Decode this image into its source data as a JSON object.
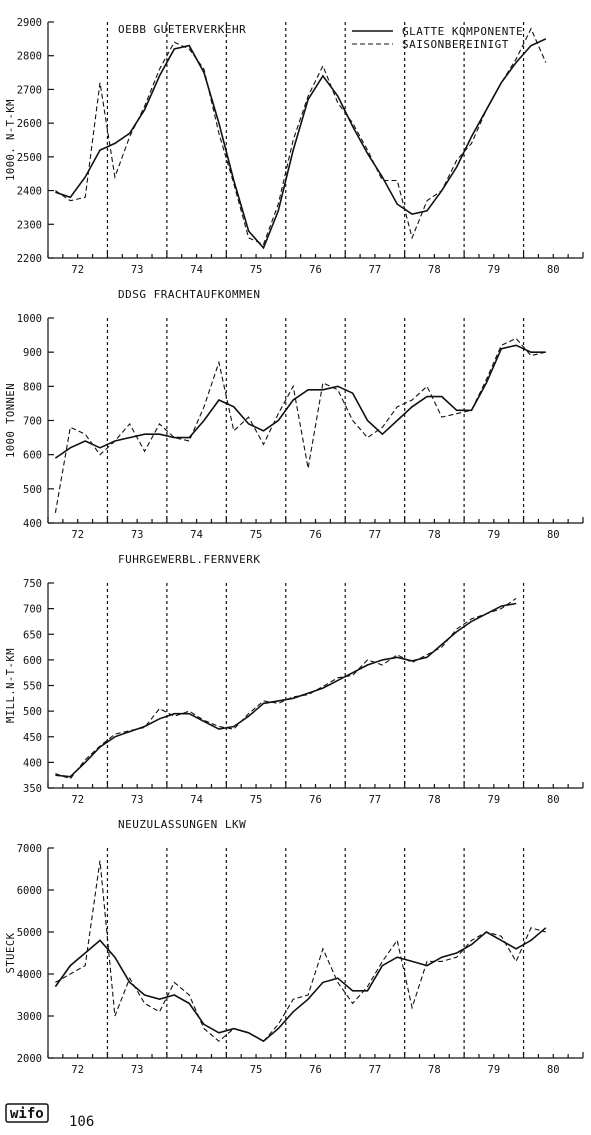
{
  "legend": {
    "smooth_label": "GLATTE KOMPONENTE",
    "seasonal_label": "SAISONBEREINIGT"
  },
  "logo_text": "wifo",
  "page_number": "106",
  "chart_data": [
    {
      "type": "line",
      "title": "OEBB GUETERVERKEHR",
      "ylabel": "1000. N-T-KM",
      "ylim": [
        2200,
        2900
      ],
      "yticks": [
        2200,
        2300,
        2400,
        2500,
        2600,
        2700,
        2800,
        2900
      ],
      "xlim": [
        71.5,
        80.5
      ],
      "xticks": [
        "72",
        "73",
        "74",
        "75",
        "76",
        "77",
        "78",
        "79",
        "80"
      ],
      "grid_years": [
        72.5,
        73.5,
        74.5,
        75.5,
        76.5,
        77.5,
        78.5,
        79.5
      ],
      "series": [
        {
          "name": "GLATTE KOMPONENTE",
          "x": [
            71.625,
            71.875,
            72.125,
            72.375,
            72.625,
            72.875,
            73.125,
            73.375,
            73.625,
            73.875,
            74.125,
            74.375,
            74.625,
            74.875,
            75.125,
            75.375,
            75.625,
            75.875,
            76.125,
            76.375,
            76.625,
            76.875,
            77.125,
            77.375,
            77.625,
            77.875,
            78.125,
            78.375,
            78.625,
            78.875,
            79.125,
            79.375,
            79.625,
            79.875
          ],
          "y": [
            2395,
            2380,
            2440,
            2520,
            2540,
            2570,
            2640,
            2740,
            2820,
            2830,
            2750,
            2600,
            2430,
            2280,
            2230,
            2340,
            2520,
            2670,
            2740,
            2680,
            2590,
            2510,
            2440,
            2360,
            2330,
            2340,
            2400,
            2470,
            2560,
            2640,
            2720,
            2780,
            2830,
            2850
          ]
        },
        {
          "name": "SAISONBEREINIGT",
          "x": [
            71.625,
            71.875,
            72.125,
            72.375,
            72.625,
            72.875,
            73.125,
            73.375,
            73.625,
            73.875,
            74.125,
            74.375,
            74.625,
            74.875,
            75.125,
            75.375,
            75.625,
            75.875,
            76.125,
            76.375,
            76.625,
            76.875,
            77.125,
            77.375,
            77.625,
            77.875,
            78.125,
            78.375,
            78.625,
            78.875,
            79.125,
            79.375,
            79.625,
            79.875
          ],
          "y": [
            2400,
            2370,
            2380,
            2720,
            2440,
            2560,
            2650,
            2760,
            2840,
            2820,
            2760,
            2570,
            2420,
            2260,
            2240,
            2360,
            2550,
            2680,
            2770,
            2660,
            2600,
            2520,
            2430,
            2430,
            2260,
            2370,
            2400,
            2490,
            2540,
            2640,
            2720,
            2790,
            2880,
            2780
          ]
        }
      ]
    },
    {
      "type": "line",
      "title": "DDSG FRACHTAUFKOMMEN",
      "ylabel": "1000 TONNEN",
      "ylim": [
        400,
        1000
      ],
      "yticks": [
        400,
        500,
        600,
        700,
        800,
        900,
        1000
      ],
      "xlim": [
        71.5,
        80.5
      ],
      "xticks": [
        "72",
        "73",
        "74",
        "75",
        "76",
        "77",
        "78",
        "79",
        "80"
      ],
      "grid_years": [
        72.5,
        73.5,
        74.5,
        75.5,
        76.5,
        77.5,
        78.5,
        79.5
      ],
      "series": [
        {
          "name": "GLATTE KOMPONENTE",
          "x": [
            71.625,
            71.875,
            72.125,
            72.375,
            72.625,
            72.875,
            73.125,
            73.375,
            73.625,
            73.875,
            74.125,
            74.375,
            74.625,
            74.875,
            75.125,
            75.375,
            75.625,
            75.875,
            76.125,
            76.375,
            76.625,
            76.875,
            77.125,
            77.375,
            77.625,
            77.875,
            78.125,
            78.375,
            78.625,
            78.875,
            79.125,
            79.375,
            79.625,
            79.875
          ],
          "y": [
            590,
            620,
            640,
            620,
            640,
            650,
            660,
            660,
            650,
            650,
            700,
            760,
            740,
            690,
            670,
            700,
            760,
            790,
            790,
            800,
            780,
            700,
            660,
            700,
            740,
            770,
            770,
            730,
            730,
            810,
            910,
            920,
            900,
            900
          ]
        },
        {
          "name": "SAISONBEREINIGT",
          "x": [
            71.625,
            71.875,
            72.125,
            72.375,
            72.625,
            72.875,
            73.125,
            73.375,
            73.625,
            73.875,
            74.125,
            74.375,
            74.625,
            74.875,
            75.125,
            75.375,
            75.625,
            75.875,
            76.125,
            76.375,
            76.625,
            76.875,
            77.125,
            77.375,
            77.625,
            77.875,
            78.125,
            78.375,
            78.625,
            78.875,
            79.125,
            79.375,
            79.625,
            79.875
          ],
          "y": [
            430,
            680,
            660,
            600,
            640,
            690,
            610,
            690,
            650,
            640,
            740,
            870,
            670,
            710,
            630,
            720,
            800,
            560,
            810,
            790,
            700,
            650,
            680,
            740,
            760,
            800,
            710,
            720,
            730,
            820,
            920,
            940,
            890,
            900
          ]
        }
      ]
    },
    {
      "type": "line",
      "title": "FUHRGEWERBL.FERNVERK",
      "ylabel": "MILL.N-T-KM",
      "ylim": [
        350,
        750
      ],
      "yticks": [
        350,
        400,
        450,
        500,
        550,
        600,
        650,
        700,
        750
      ],
      "xlim": [
        71.5,
        80.5
      ],
      "xticks": [
        "72",
        "73",
        "74",
        "75",
        "76",
        "77",
        "78",
        "79",
        "80"
      ],
      "grid_years": [
        72.5,
        73.5,
        74.5,
        75.5,
        76.5,
        77.5,
        78.5,
        79.5
      ],
      "series": [
        {
          "name": "GLATTE KOMPONENTE",
          "x": [
            71.625,
            71.875,
            72.125,
            72.375,
            72.625,
            72.875,
            73.125,
            73.375,
            73.625,
            73.875,
            74.125,
            74.375,
            74.625,
            74.875,
            75.125,
            75.375,
            75.625,
            75.875,
            76.125,
            76.375,
            76.625,
            76.875,
            77.125,
            77.375,
            77.625,
            77.875,
            78.125,
            78.375,
            78.625,
            78.875,
            79.125,
            79.375
          ],
          "y": [
            375,
            372,
            400,
            430,
            450,
            460,
            470,
            485,
            495,
            495,
            480,
            465,
            470,
            490,
            515,
            520,
            525,
            535,
            545,
            560,
            575,
            590,
            600,
            605,
            598,
            605,
            630,
            655,
            675,
            690,
            705,
            710
          ]
        },
        {
          "name": "SAISONBEREINIGT",
          "x": [
            71.625,
            71.875,
            72.125,
            72.375,
            72.625,
            72.875,
            73.125,
            73.375,
            73.625,
            73.875,
            74.125,
            74.375,
            74.625,
            74.875,
            75.125,
            75.375,
            75.625,
            75.875,
            76.125,
            76.375,
            76.625,
            76.875,
            77.125,
            77.375,
            77.625,
            77.875,
            78.125,
            78.375,
            78.625,
            78.875,
            79.125,
            79.375
          ],
          "y": [
            378,
            368,
            405,
            432,
            455,
            462,
            468,
            505,
            490,
            500,
            482,
            470,
            465,
            495,
            520,
            515,
            528,
            532,
            548,
            565,
            570,
            600,
            590,
            610,
            595,
            610,
            625,
            660,
            680,
            690,
            700,
            720
          ]
        }
      ]
    },
    {
      "type": "line",
      "title": "NEUZULASSUNGEN LKW",
      "ylabel": "STUECK",
      "ylim": [
        2000,
        7000
      ],
      "yticks": [
        2000,
        3000,
        4000,
        5000,
        6000,
        7000
      ],
      "xlim": [
        71.5,
        80.5
      ],
      "xticks": [
        "72",
        "73",
        "74",
        "75",
        "76",
        "77",
        "78",
        "79",
        "80"
      ],
      "grid_years": [
        72.5,
        73.5,
        74.5,
        75.5,
        76.5,
        77.5,
        78.5,
        79.5
      ],
      "series": [
        {
          "name": "GLATTE KOMPONENTE",
          "x": [
            71.625,
            71.875,
            72.125,
            72.375,
            72.625,
            72.875,
            73.125,
            73.375,
            73.625,
            73.875,
            74.125,
            74.375,
            74.625,
            74.875,
            75.125,
            75.375,
            75.625,
            75.875,
            76.125,
            76.375,
            76.625,
            76.875,
            77.125,
            77.375,
            77.625,
            77.875,
            78.125,
            78.375,
            78.625,
            78.875,
            79.125,
            79.375,
            79.625,
            79.875
          ],
          "y": [
            3700,
            4200,
            4500,
            4800,
            4400,
            3800,
            3500,
            3400,
            3500,
            3300,
            2800,
            2600,
            2700,
            2600,
            2400,
            2700,
            3100,
            3400,
            3800,
            3900,
            3600,
            3600,
            4200,
            4400,
            4300,
            4200,
            4400,
            4500,
            4700,
            5000,
            4800,
            4600,
            4800,
            5100
          ]
        },
        {
          "name": "SAISONBEREINIGT",
          "x": [
            71.625,
            71.875,
            72.125,
            72.375,
            72.625,
            72.875,
            73.125,
            73.375,
            73.625,
            73.875,
            74.125,
            74.375,
            74.625,
            74.875,
            75.125,
            75.375,
            75.625,
            75.875,
            76.125,
            76.375,
            76.625,
            76.875,
            77.125,
            77.375,
            77.625,
            77.875,
            78.125,
            78.375,
            78.625,
            78.875,
            79.125,
            79.375,
            79.625,
            79.875
          ],
          "y": [
            3800,
            4000,
            4200,
            6700,
            3000,
            3900,
            3300,
            3100,
            3800,
            3500,
            2700,
            2400,
            2700,
            2600,
            2400,
            2800,
            3400,
            3500,
            4600,
            3800,
            3300,
            3700,
            4300,
            4800,
            3200,
            4300,
            4300,
            4400,
            4800,
            5000,
            4900,
            4300,
            5100,
            5000
          ]
        }
      ]
    }
  ]
}
